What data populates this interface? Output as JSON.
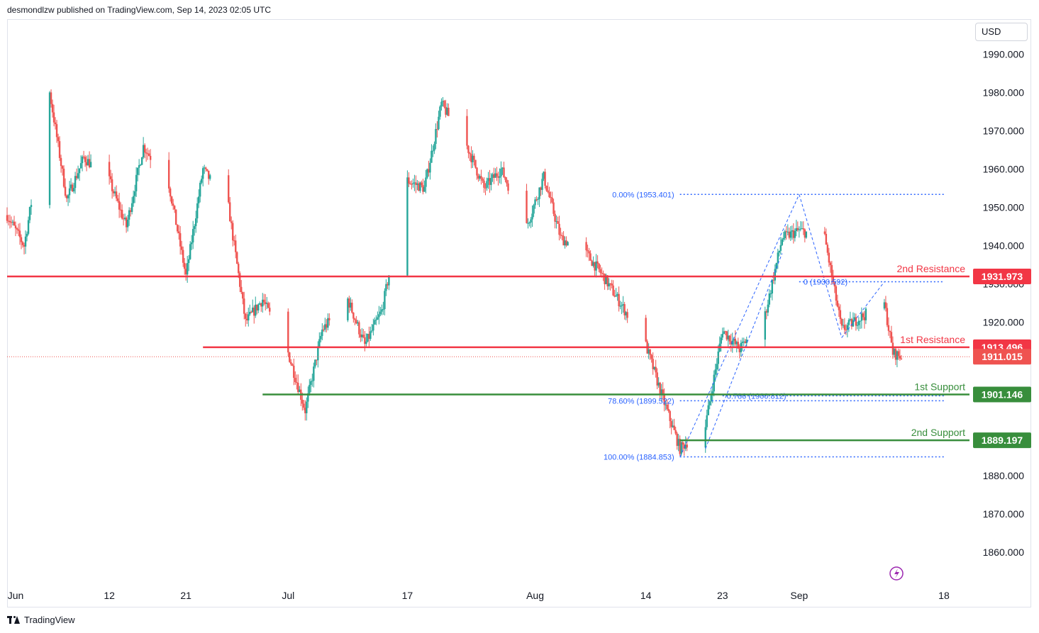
{
  "header": {
    "publisher_text": "desmondlzw published on TradingView.com, Sep 14, 2023 02:05 UTC"
  },
  "currency_label": "USD",
  "footer": {
    "brand": "TradingView"
  },
  "colors": {
    "up": "#26a69a",
    "down": "#ef5350",
    "resistance": "#f23645",
    "support": "#388e3c",
    "fib": "#2962ff"
  },
  "chart_data": {
    "type": "candlestick",
    "y_axis": {
      "range": [
        1852,
        1999
      ],
      "ticks": [
        {
          "value": 1990,
          "label": "1990.000"
        },
        {
          "value": 1980,
          "label": "1980.000"
        },
        {
          "value": 1970,
          "label": "1970.000"
        },
        {
          "value": 1960,
          "label": "1960.000"
        },
        {
          "value": 1950,
          "label": "1950.000"
        },
        {
          "value": 1940,
          "label": "1940.000"
        },
        {
          "value": 1930,
          "label": "1930.000"
        },
        {
          "value": 1920,
          "label": "1920.000"
        },
        {
          "value": 1880,
          "label": "1880.000"
        },
        {
          "value": 1870,
          "label": "1870.000"
        },
        {
          "value": 1860,
          "label": "1860.000"
        }
      ]
    },
    "x_axis": {
      "range": [
        "2023-05-31",
        "2023-09-21"
      ],
      "ticks": [
        {
          "date": "2023-06-01",
          "label": "Jun"
        },
        {
          "date": "2023-06-12",
          "label": "12"
        },
        {
          "date": "2023-06-21",
          "label": "21"
        },
        {
          "date": "2023-07-03",
          "label": "Jul"
        },
        {
          "date": "2023-07-17",
          "label": "17"
        },
        {
          "date": "2023-08-01",
          "label": "Aug"
        },
        {
          "date": "2023-08-14",
          "label": "14"
        },
        {
          "date": "2023-08-23",
          "label": "23"
        },
        {
          "date": "2023-09-01",
          "label": "Sep"
        },
        {
          "date": "2023-09-18",
          "label": "18"
        }
      ]
    },
    "price_path": [
      {
        "date": "2023-05-31",
        "price": 1948
      },
      {
        "date": "2023-06-02",
        "price": 1940
      },
      {
        "date": "2023-06-05",
        "price": 1980
      },
      {
        "date": "2023-06-07",
        "price": 1952
      },
      {
        "date": "2023-06-09",
        "price": 1963
      },
      {
        "date": "2023-06-12",
        "price": 1957
      },
      {
        "date": "2023-06-14",
        "price": 1945
      },
      {
        "date": "2023-06-16",
        "price": 1966
      },
      {
        "date": "2023-06-19",
        "price": 1956
      },
      {
        "date": "2023-06-21",
        "price": 1932
      },
      {
        "date": "2023-06-23",
        "price": 1960
      },
      {
        "date": "2023-06-26",
        "price": 1950
      },
      {
        "date": "2023-06-28",
        "price": 1920
      },
      {
        "date": "2023-06-30",
        "price": 1926
      },
      {
        "date": "2023-07-03",
        "price": 1912
      },
      {
        "date": "2023-07-05",
        "price": 1897
      },
      {
        "date": "2023-07-07",
        "price": 1918
      },
      {
        "date": "2023-07-10",
        "price": 1926
      },
      {
        "date": "2023-07-12",
        "price": 1914
      },
      {
        "date": "2023-07-14",
        "price": 1923
      },
      {
        "date": "2023-07-17",
        "price": 1957
      },
      {
        "date": "2023-07-19",
        "price": 1955
      },
      {
        "date": "2023-07-21",
        "price": 1977
      },
      {
        "date": "2023-07-24",
        "price": 1966
      },
      {
        "date": "2023-07-26",
        "price": 1955
      },
      {
        "date": "2023-07-28",
        "price": 1960
      },
      {
        "date": "2023-07-31",
        "price": 1945
      },
      {
        "date": "2023-08-02",
        "price": 1958
      },
      {
        "date": "2023-08-04",
        "price": 1942
      },
      {
        "date": "2023-08-07",
        "price": 1938
      },
      {
        "date": "2023-08-09",
        "price": 1932
      },
      {
        "date": "2023-08-11",
        "price": 1925
      },
      {
        "date": "2023-08-14",
        "price": 1914
      },
      {
        "date": "2023-08-16",
        "price": 1900
      },
      {
        "date": "2023-08-18",
        "price": 1887
      },
      {
        "date": "2023-08-21",
        "price": 1893
      },
      {
        "date": "2023-08-23",
        "price": 1918
      },
      {
        "date": "2023-08-25",
        "price": 1913
      },
      {
        "date": "2023-08-28",
        "price": 1922
      },
      {
        "date": "2023-08-30",
        "price": 1942
      },
      {
        "date": "2023-09-01",
        "price": 1944
      },
      {
        "date": "2023-09-04",
        "price": 1942
      },
      {
        "date": "2023-09-06",
        "price": 1918
      },
      {
        "date": "2023-09-08",
        "price": 1921
      },
      {
        "date": "2023-09-11",
        "price": 1925
      },
      {
        "date": "2023-09-12",
        "price": 1912
      },
      {
        "date": "2023-09-13",
        "price": 1911
      }
    ],
    "horizontal_levels": [
      {
        "name": "2nd Resistance",
        "value": "1931.973",
        "price": 1931.973,
        "kind": "resistance",
        "start_date": "2023-05-31"
      },
      {
        "name": "1st Resistance",
        "value": "1913.496",
        "price": 1913.496,
        "kind": "resistance",
        "start_date": "2023-06-23"
      },
      {
        "name": "1st Support",
        "value": "1901.146",
        "price": 1901.146,
        "kind": "support",
        "start_date": "2023-06-30"
      },
      {
        "name": "2nd Support",
        "value": "1889.197",
        "price": 1889.197,
        "kind": "support",
        "start_date": "2023-08-18"
      }
    ],
    "current_price": {
      "value": "1911.015",
      "price": 1911.015
    },
    "fib_levels": [
      {
        "label": "0.00% (1953.401)",
        "price": 1953.401,
        "start_date": "2023-08-18",
        "end_date": "2023-09-18",
        "text_side": "left"
      },
      {
        "label": "78.60% (1899.522)",
        "price": 1899.522,
        "start_date": "2023-08-18",
        "end_date": "2023-09-18",
        "text_side": "left"
      },
      {
        "label": "100.00% (1884.853)",
        "price": 1884.853,
        "start_date": "2023-08-18",
        "end_date": "2023-09-18",
        "text_side": "left"
      },
      {
        "label": "0 (1930.592)",
        "price": 1930.592,
        "start_date": "2023-09-01",
        "end_date": "2023-09-18",
        "text_side": "right"
      },
      {
        "label": "0.786 (1900.812)",
        "price": 1900.812,
        "start_date": "2023-08-23",
        "end_date": "2023-09-18",
        "text_side": "right"
      }
    ],
    "fib_trendlines": [
      {
        "from": {
          "date": "2023-08-18",
          "price": 1884.853
        },
        "to": {
          "date": "2023-09-01",
          "price": 1953.401
        }
      },
      {
        "from": {
          "date": "2023-08-21",
          "price": 1887
        },
        "to": {
          "date": "2023-08-30",
          "price": 1938
        }
      },
      {
        "from": {
          "date": "2023-09-01",
          "price": 1953.401
        },
        "to": {
          "date": "2023-09-06",
          "price": 1916
        }
      },
      {
        "from": {
          "date": "2023-09-06",
          "price": 1916
        },
        "to": {
          "date": "2023-09-11",
          "price": 1930.592
        }
      }
    ]
  }
}
